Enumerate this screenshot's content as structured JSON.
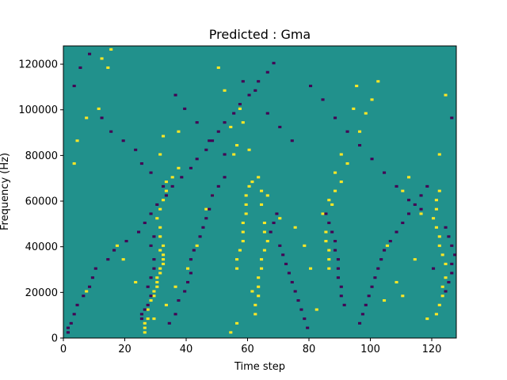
{
  "chart_data": {
    "type": "heatmap",
    "title": "Predicted : Gma",
    "xlabel": "Time step",
    "ylabel": "Frequency (Hz)",
    "xlim": [
      0,
      128
    ],
    "ylim": [
      0,
      128000
    ],
    "x_ticks": [
      0,
      20,
      40,
      60,
      80,
      100,
      120
    ],
    "y_ticks": [
      0,
      20000,
      40000,
      60000,
      80000,
      100000,
      120000
    ],
    "x_tick_labels": [
      "0",
      "20",
      "40",
      "60",
      "80",
      "100",
      "120"
    ],
    "y_tick_labels": [
      "0",
      "20000",
      "40000",
      "60000",
      "80000",
      "100000",
      "120000"
    ],
    "colormap": {
      "low": "#440154",
      "mid": "#21918c",
      "high": "#fde725"
    },
    "background_value": 0,
    "rows": 128,
    "cols": 128,
    "row_height_hz": 1000,
    "high_cells": [
      [
        26,
        2
      ],
      [
        26,
        4
      ],
      [
        26,
        6
      ],
      [
        27,
        8
      ],
      [
        27,
        12
      ],
      [
        28,
        16
      ],
      [
        29,
        18
      ],
      [
        29,
        20
      ],
      [
        30,
        22
      ],
      [
        30,
        24
      ],
      [
        30,
        26
      ],
      [
        31,
        28
      ],
      [
        31,
        30
      ],
      [
        32,
        32
      ],
      [
        32,
        34
      ],
      [
        32,
        36
      ],
      [
        31,
        38
      ],
      [
        32,
        40
      ],
      [
        31,
        44
      ],
      [
        31,
        48
      ],
      [
        30,
        52
      ],
      [
        31,
        56
      ],
      [
        32,
        60
      ],
      [
        33,
        64
      ],
      [
        33,
        68
      ],
      [
        35,
        70
      ],
      [
        37,
        74
      ],
      [
        31,
        80
      ],
      [
        32,
        88
      ],
      [
        37,
        90
      ],
      [
        56,
        30
      ],
      [
        56,
        34
      ],
      [
        57,
        38
      ],
      [
        58,
        42
      ],
      [
        58,
        46
      ],
      [
        58,
        50
      ],
      [
        59,
        54
      ],
      [
        59,
        58
      ],
      [
        59,
        62
      ],
      [
        60,
        66
      ],
      [
        61,
        20
      ],
      [
        62,
        10
      ],
      [
        62,
        14
      ],
      [
        63,
        18
      ],
      [
        63,
        22
      ],
      [
        63,
        26
      ],
      [
        64,
        30
      ],
      [
        64,
        34
      ],
      [
        65,
        38
      ],
      [
        66,
        42
      ],
      [
        65,
        46
      ],
      [
        65,
        50
      ],
      [
        64,
        58
      ],
      [
        64,
        64
      ],
      [
        63,
        70
      ],
      [
        54,
        2
      ],
      [
        56,
        6
      ],
      [
        55,
        80
      ],
      [
        56,
        84
      ],
      [
        57,
        100
      ],
      [
        86,
        30
      ],
      [
        86,
        34
      ],
      [
        86,
        38
      ],
      [
        85,
        42
      ],
      [
        85,
        46
      ],
      [
        87,
        58
      ],
      [
        88,
        64
      ],
      [
        90,
        68
      ],
      [
        92,
        76
      ],
      [
        94,
        100
      ],
      [
        95,
        110
      ],
      [
        104,
        16
      ],
      [
        105,
        40
      ],
      [
        110,
        64
      ],
      [
        112,
        70
      ],
      [
        118,
        8
      ],
      [
        121,
        10
      ],
      [
        122,
        14
      ],
      [
        123,
        18
      ],
      [
        123,
        22
      ],
      [
        124,
        26
      ],
      [
        124,
        32
      ],
      [
        123,
        36
      ],
      [
        122,
        40
      ],
      [
        122,
        44
      ],
      [
        121,
        48
      ],
      [
        120,
        52
      ],
      [
        121,
        56
      ],
      [
        121,
        60
      ],
      [
        122,
        64
      ],
      [
        122,
        80
      ],
      [
        124,
        106
      ],
      [
        7,
        20
      ],
      [
        3,
        76
      ],
      [
        4,
        86
      ],
      [
        7,
        96
      ],
      [
        11,
        100
      ],
      [
        14,
        118
      ],
      [
        12,
        122
      ],
      [
        15,
        126
      ],
      [
        17,
        40
      ],
      [
        19,
        34
      ],
      [
        23,
        24
      ],
      [
        29,
        8
      ],
      [
        33,
        14
      ],
      [
        36,
        22
      ],
      [
        40,
        30
      ],
      [
        43,
        40
      ],
      [
        46,
        56
      ],
      [
        48,
        62
      ],
      [
        50,
        118
      ],
      [
        52,
        108
      ],
      [
        54,
        92
      ],
      [
        58,
        94
      ],
      [
        60,
        82
      ],
      [
        61,
        68
      ],
      [
        66,
        62
      ],
      [
        70,
        52
      ],
      [
        75,
        48
      ],
      [
        78,
        40
      ],
      [
        80,
        30
      ],
      [
        82,
        12
      ],
      [
        84,
        54
      ],
      [
        86,
        60
      ],
      [
        88,
        72
      ],
      [
        90,
        80
      ],
      [
        96,
        90
      ],
      [
        98,
        98
      ],
      [
        100,
        104
      ],
      [
        102,
        112
      ],
      [
        108,
        24
      ],
      [
        110,
        18
      ],
      [
        114,
        34
      ],
      [
        116,
        54
      ]
    ],
    "low_cells": [
      [
        1,
        2
      ],
      [
        1,
        4
      ],
      [
        2,
        6
      ],
      [
        3,
        10
      ],
      [
        4,
        14
      ],
      [
        6,
        18
      ],
      [
        8,
        22
      ],
      [
        9,
        26
      ],
      [
        10,
        30
      ],
      [
        14,
        34
      ],
      [
        16,
        38
      ],
      [
        20,
        42
      ],
      [
        24,
        46
      ],
      [
        26,
        50
      ],
      [
        28,
        54
      ],
      [
        30,
        58
      ],
      [
        33,
        62
      ],
      [
        35,
        66
      ],
      [
        38,
        70
      ],
      [
        41,
        74
      ],
      [
        43,
        78
      ],
      [
        46,
        82
      ],
      [
        47,
        86
      ],
      [
        50,
        90
      ],
      [
        52,
        94
      ],
      [
        55,
        98
      ],
      [
        57,
        102
      ],
      [
        60,
        106
      ],
      [
        63,
        112
      ],
      [
        66,
        116
      ],
      [
        68,
        120
      ],
      [
        25,
        8
      ],
      [
        25,
        10
      ],
      [
        26,
        12
      ],
      [
        27,
        14
      ],
      [
        28,
        18
      ],
      [
        27,
        22
      ],
      [
        28,
        26
      ],
      [
        29,
        30
      ],
      [
        29,
        34
      ],
      [
        28,
        40
      ],
      [
        29,
        44
      ],
      [
        34,
        6
      ],
      [
        36,
        10
      ],
      [
        37,
        16
      ],
      [
        39,
        20
      ],
      [
        40,
        24
      ],
      [
        41,
        28
      ],
      [
        41,
        34
      ],
      [
        42,
        38
      ],
      [
        44,
        44
      ],
      [
        45,
        48
      ],
      [
        46,
        52
      ],
      [
        47,
        56
      ],
      [
        48,
        62
      ],
      [
        50,
        66
      ],
      [
        52,
        70
      ],
      [
        67,
        46
      ],
      [
        68,
        50
      ],
      [
        69,
        54
      ],
      [
        70,
        40
      ],
      [
        71,
        36
      ],
      [
        72,
        32
      ],
      [
        73,
        28
      ],
      [
        74,
        24
      ],
      [
        75,
        20
      ],
      [
        76,
        16
      ],
      [
        77,
        12
      ],
      [
        78,
        8
      ],
      [
        79,
        4
      ],
      [
        85,
        54
      ],
      [
        86,
        50
      ],
      [
        87,
        46
      ],
      [
        88,
        42
      ],
      [
        88,
        38
      ],
      [
        89,
        34
      ],
      [
        89,
        30
      ],
      [
        89,
        26
      ],
      [
        90,
        22
      ],
      [
        90,
        18
      ],
      [
        91,
        14
      ],
      [
        96,
        6
      ],
      [
        97,
        10
      ],
      [
        98,
        14
      ],
      [
        99,
        18
      ],
      [
        100,
        22
      ],
      [
        101,
        26
      ],
      [
        102,
        30
      ],
      [
        103,
        34
      ],
      [
        104,
        38
      ],
      [
        106,
        42
      ],
      [
        108,
        46
      ],
      [
        110,
        50
      ],
      [
        112,
        54
      ],
      [
        114,
        58
      ],
      [
        116,
        62
      ],
      [
        118,
        66
      ],
      [
        124,
        20
      ],
      [
        125,
        24
      ],
      [
        126,
        28
      ],
      [
        126,
        32
      ],
      [
        127,
        36
      ],
      [
        126,
        40
      ],
      [
        125,
        44
      ],
      [
        124,
        48
      ],
      [
        3,
        110
      ],
      [
        5,
        118
      ],
      [
        8,
        124
      ],
      [
        12,
        96
      ],
      [
        15,
        90
      ],
      [
        19,
        86
      ],
      [
        23,
        82
      ],
      [
        25,
        76
      ],
      [
        28,
        72
      ],
      [
        32,
        66
      ],
      [
        36,
        106
      ],
      [
        39,
        100
      ],
      [
        43,
        94
      ],
      [
        48,
        86
      ],
      [
        52,
        80
      ],
      [
        58,
        112
      ],
      [
        62,
        108
      ],
      [
        66,
        98
      ],
      [
        70,
        92
      ],
      [
        74,
        86
      ],
      [
        80,
        110
      ],
      [
        84,
        104
      ],
      [
        88,
        96
      ],
      [
        92,
        90
      ],
      [
        96,
        84
      ],
      [
        100,
        78
      ],
      [
        104,
        72
      ],
      [
        108,
        66
      ],
      [
        112,
        60
      ],
      [
        116,
        56
      ],
      [
        120,
        30
      ],
      [
        126,
        96
      ]
    ]
  }
}
